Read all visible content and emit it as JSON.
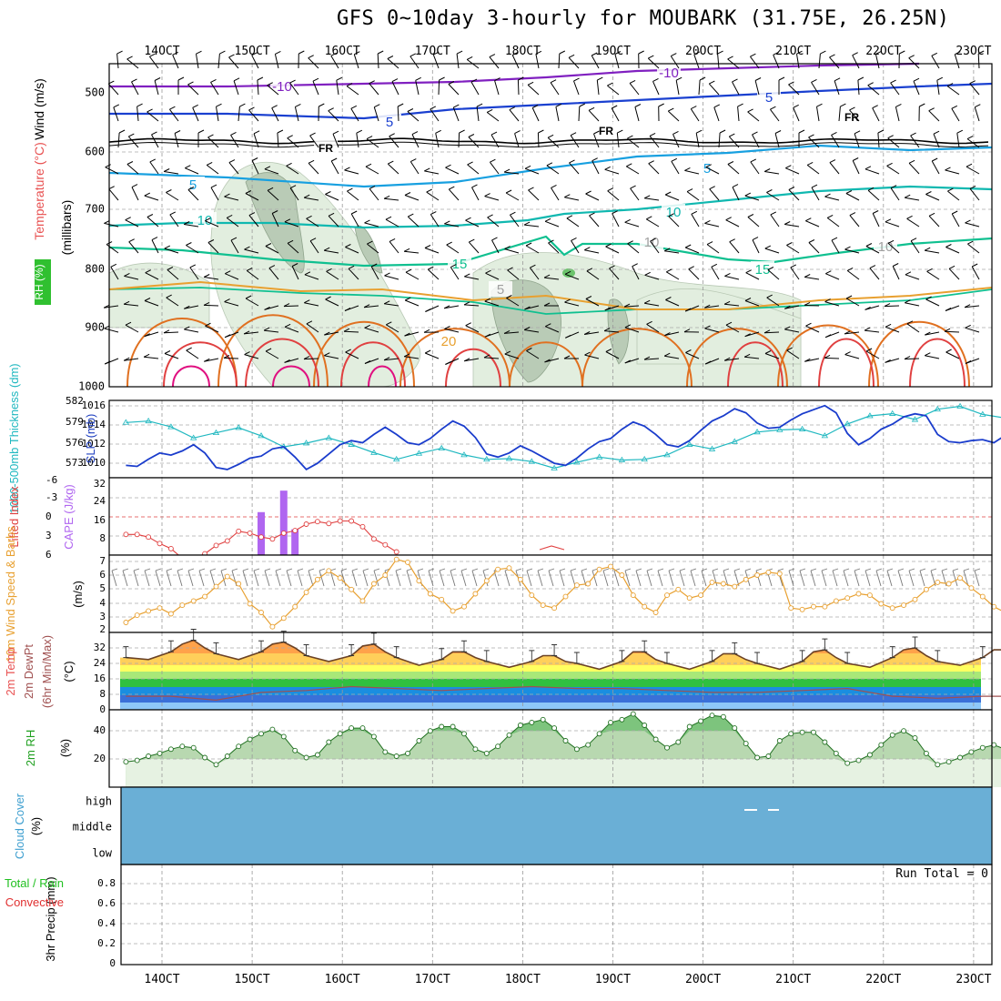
{
  "title": "GFS 0~10day 3-hourly for MOUBARK (31.75E, 26.25N)",
  "colors": {
    "temp_contour": "#e8a030",
    "wind_label": "#000000",
    "rh_label": "#20c020",
    "slp": "#1a3ccc",
    "thickness": "#20b8c0",
    "cape": "#b066f0",
    "lifted_index": "#e04040",
    "wind10m": "#e8a030",
    "cloud": "#6aafd6",
    "precip_total": "#20c020",
    "precip_conv": "#e03030"
  },
  "date_ticks": [
    "14OCT",
    "15OCT",
    "16OCT",
    "17OCT",
    "18OCT",
    "19OCT",
    "20OCT",
    "21OCT",
    "22OCT",
    "23OCT"
  ],
  "panels": {
    "upper": {
      "ylabels": {
        "wind": "Wind (m/s)",
        "temp": "Temperature (°C)",
        "millibars": "(millibars)",
        "rh": "RH (%)"
      },
      "pressure_ticks": [
        "500",
        "600",
        "700",
        "800",
        "900",
        "1000"
      ],
      "contour_labels": [
        {
          "text": "-10",
          "color": "#8020c0"
        },
        {
          "text": "-10",
          "color": "#8020c0"
        },
        {
          "text": "5",
          "color": "#1a40d0"
        },
        {
          "text": "5",
          "color": "#1a40d0"
        },
        {
          "text": "FR",
          "color": "#000000"
        },
        {
          "text": "FR",
          "color": "#000000"
        },
        {
          "text": "FR",
          "color": "#000000"
        },
        {
          "text": "5",
          "color": "#18a0e0"
        },
        {
          "text": "5",
          "color": "#18a0e0"
        },
        {
          "text": "10",
          "color": "#10b8b0"
        },
        {
          "text": "10",
          "color": "#10b8b0"
        },
        {
          "text": "10",
          "color": "#a0a0a0"
        },
        {
          "text": "10",
          "color": "#a0a0a0"
        },
        {
          "text": "15",
          "color": "#10c090"
        },
        {
          "text": "15",
          "color": "#10c090"
        },
        {
          "text": "20",
          "color": "#e8a030"
        },
        {
          "text": "5",
          "color": "#a0a0a0"
        }
      ]
    },
    "slp": {
      "ylabel_left": "1000-500mb Thickness (dm)",
      "ylabel_right": "SLP (mb)",
      "left_ticks": [
        "582",
        "579",
        "576",
        "573"
      ],
      "right_ticks": [
        "1016",
        "1014",
        "1012",
        "1010"
      ]
    },
    "cape": {
      "ylabel_left": "Lifted Index",
      "ylabel_right": "CAPE (J/kg)",
      "left_ticks": [
        "-6",
        "-3",
        "0",
        "3",
        "6"
      ],
      "right_ticks": [
        "32",
        "24",
        "16",
        "8"
      ]
    },
    "wind10m": {
      "ylabel": "10m Wind Speed & Barbs",
      "ylabel_unit": "(m/s)",
      "ticks": [
        "7",
        "6",
        "5",
        "4",
        "3",
        "2"
      ]
    },
    "temp2m": {
      "ylabel": "2m Temp 2m DewPt (6hr Min/Max)",
      "ylabel_unit": "(°C)",
      "ticks": [
        "32",
        "24",
        "16",
        "8",
        "0"
      ]
    },
    "rh2m": {
      "ylabel": "2m RH",
      "ylabel_unit": "(%)",
      "ticks": [
        "40",
        "20"
      ]
    },
    "cloud": {
      "ylabel": "Cloud Cover",
      "ylabel_unit": "(%)",
      "levels": [
        "high",
        "middle",
        "low"
      ]
    },
    "precip": {
      "ylabel": "3hr Precip (mm)",
      "legend_total": "Total / Rain",
      "legend_conv": "Convective",
      "ticks": [
        "0.8",
        "0.6",
        "0.4",
        "0.2",
        "0"
      ],
      "run_total": "Run Total = 0"
    }
  },
  "chart_data": [
    {
      "type": "line",
      "name": "slp",
      "ylabel": "SLP (mb)",
      "ylim": [
        1009,
        1016.5
      ],
      "x_days": [
        0,
        0.125,
        0.25,
        0.375,
        0.5,
        0.625,
        0.75,
        0.875,
        1,
        1.125,
        1.25,
        1.375,
        1.5,
        1.625,
        1.75,
        1.875,
        2,
        2.125,
        2.25,
        2.375,
        2.5,
        2.625,
        2.75,
        2.875,
        3,
        3.125,
        3.25,
        3.375,
        3.5,
        3.625,
        3.75,
        3.875,
        4,
        4.125,
        4.25,
        4.375,
        4.5,
        4.625,
        4.75,
        4.875,
        5,
        5.125,
        5.25,
        5.375,
        5.5,
        5.625,
        5.75,
        5.875,
        6,
        6.125,
        6.25,
        6.375,
        6.5,
        6.625,
        6.75,
        6.875,
        7,
        7.125,
        7.25,
        7.375,
        7.5,
        7.625,
        7.75,
        7.875,
        8,
        8.125,
        8.25,
        8.375,
        8.5,
        8.625,
        8.75,
        8.875,
        9,
        9.125,
        9.25,
        9.375,
        9.5,
        9.625,
        9.75
      ],
      "values": [
        1010.2,
        1010.1,
        1010.8,
        1011.4,
        1011.2,
        1011.6,
        1012.2,
        1011.4,
        1010.0,
        1009.8,
        1010.3,
        1010.9,
        1011.1,
        1011.8,
        1012.0,
        1011.0,
        1009.8,
        1010.4,
        1011.3,
        1012.2,
        1012.6,
        1012.4,
        1013.2,
        1013.9,
        1013.2,
        1012.4,
        1012.2,
        1012.8,
        1013.7,
        1014.5,
        1014.0,
        1012.9,
        1011.3,
        1011.0,
        1011.4,
        1012.1,
        1011.6,
        1011.0,
        1010.4,
        1010.2,
        1010.9,
        1011.8,
        1012.5,
        1012.8,
        1013.7,
        1014.4,
        1014.0,
        1013.2,
        1012.2,
        1012.0,
        1012.6,
        1013.6,
        1014.5,
        1015.0,
        1015.7,
        1015.3,
        1014.3,
        1013.8,
        1013.9,
        1014.6,
        1015.2,
        1015.6,
        1016.0,
        1015.3,
        1013.3,
        1012.2,
        1012.8,
        1013.7,
        1014.2,
        1014.9,
        1015.2,
        1015.0,
        1013.2,
        1012.5,
        1012.4,
        1012.6,
        1012.7,
        1012.4,
        1013.1
      ]
    },
    {
      "type": "line",
      "name": "thickness",
      "ylabel": "1000-500mb Thickness (dm)",
      "ylim": [
        571.5,
        582
      ],
      "x_days": [
        0,
        0.25,
        0.5,
        0.75,
        1,
        1.25,
        1.5,
        1.75,
        2,
        2.25,
        2.5,
        2.75,
        3,
        3.25,
        3.5,
        3.75,
        4,
        4.25,
        4.5,
        4.75,
        5,
        5.25,
        5.5,
        5.75,
        6,
        6.25,
        6.5,
        6.75,
        7,
        7.25,
        7.5,
        7.75,
        8,
        8.25,
        8.5,
        8.75,
        9,
        9.25,
        9.5,
        9.75
      ],
      "values": [
        579.0,
        579.2,
        578.4,
        576.9,
        577.6,
        578.3,
        577.2,
        575.7,
        576.2,
        576.9,
        576.0,
        574.9,
        574.0,
        574.8,
        575.5,
        574.6,
        574.0,
        574.1,
        573.7,
        572.8,
        573.6,
        574.3,
        573.9,
        574.0,
        574.6,
        576.0,
        575.4,
        576.4,
        577.7,
        578.0,
        578.1,
        577.2,
        578.8,
        579.9,
        580.2,
        579.4,
        580.8,
        581.2,
        580.1,
        579.6
      ]
    },
    {
      "type": "bar",
      "name": "cape",
      "ylabel": "CAPE (J/kg)",
      "ylim": [
        0,
        36
      ],
      "x_days": [
        1.5,
        1.75,
        1.875
      ],
      "values": [
        20,
        30,
        12
      ]
    },
    {
      "type": "line",
      "name": "lifted_index",
      "ylabel": "Lifted Index",
      "ylim": [
        6,
        -6
      ],
      "x_days": [
        0,
        0.125,
        0.25,
        0.375,
        0.5,
        0.625,
        0.75,
        0.875,
        1,
        1.125,
        1.25,
        1.375,
        1.5,
        1.625,
        1.75,
        1.875,
        2,
        2.125,
        2.25,
        2.375,
        2.5,
        2.625,
        2.75,
        2.875,
        3
      ],
      "values": [
        2.8,
        2.8,
        3.2,
        4.2,
        5.0,
        6.5,
        6.5,
        5.8,
        4.5,
        3.8,
        2.3,
        2.6,
        3.2,
        3.5,
        2.6,
        2.2,
        1.2,
        0.8,
        1.1,
        0.7,
        0.7,
        1.6,
        3.5,
        4.4,
        5.5
      ]
    },
    {
      "type": "line",
      "name": "wind10m",
      "ylabel": "10m Wind Speed (m/s)",
      "ylim": [
        1.8,
        7.2
      ],
      "x_days": [
        0,
        0.125,
        0.25,
        0.375,
        0.5,
        0.625,
        0.75,
        0.875,
        1,
        1.125,
        1.25,
        1.375,
        1.5,
        1.625,
        1.75,
        1.875,
        2,
        2.125,
        2.25,
        2.375,
        2.5,
        2.625,
        2.75,
        2.875,
        3,
        3.125,
        3.25,
        3.375,
        3.5,
        3.625,
        3.75,
        3.875,
        4,
        4.125,
        4.25,
        4.375,
        4.5,
        4.625,
        4.75,
        4.875,
        5,
        5.125,
        5.25,
        5.375,
        5.5,
        5.625,
        5.75,
        5.875,
        6,
        6.125,
        6.25,
        6.375,
        6.5,
        6.625,
        6.75,
        6.875,
        7,
        7.125,
        7.25,
        7.375,
        7.5,
        7.625,
        7.75,
        7.875,
        8,
        8.125,
        8.25,
        8.375,
        8.5,
        8.625,
        8.75,
        8.875,
        9,
        9.125,
        9.25,
        9.375,
        9.5,
        9.625,
        9.75
      ],
      "values": [
        2.5,
        3.0,
        3.3,
        3.5,
        3.1,
        3.7,
        4.0,
        4.3,
        5.0,
        5.7,
        5.2,
        3.8,
        3.2,
        2.2,
        2.8,
        3.6,
        4.6,
        5.5,
        6.1,
        5.6,
        4.8,
        4.0,
        5.2,
        5.8,
        6.9,
        6.7,
        5.4,
        4.5,
        4.1,
        3.3,
        3.6,
        4.5,
        5.4,
        6.2,
        6.3,
        5.5,
        4.4,
        3.7,
        3.5,
        4.3,
        5.1,
        5.2,
        6.2,
        6.4,
        5.8,
        4.4,
        3.6,
        3.2,
        4.4,
        4.8,
        4.2,
        4.4,
        5.3,
        5.2,
        5.0,
        5.5,
        5.8,
        6.0,
        5.9,
        3.5,
        3.4,
        3.6,
        3.6,
        4.0,
        4.2,
        4.5,
        4.4,
        3.8,
        3.5,
        3.7,
        4.1,
        4.8,
        5.3,
        5.2,
        5.6,
        4.9,
        4.3,
        3.6,
        3.2
      ]
    },
    {
      "type": "area",
      "name": "temp2m",
      "ylabel": "2m Temp (°C)",
      "ylim": [
        0,
        40
      ],
      "x_days": [
        0,
        0.25,
        0.5,
        0.625,
        0.75,
        0.875,
        1,
        1.25,
        1.5,
        1.625,
        1.75,
        1.875,
        2,
        2.25,
        2.5,
        2.625,
        2.75,
        2.875,
        3,
        3.25,
        3.5,
        3.625,
        3.75,
        3.875,
        4,
        4.25,
        4.5,
        4.625,
        4.75,
        4.875,
        5,
        5.25,
        5.5,
        5.625,
        5.75,
        5.875,
        6,
        6.25,
        6.5,
        6.625,
        6.75,
        6.875,
        7,
        7.25,
        7.5,
        7.625,
        7.75,
        7.875,
        8,
        8.25,
        8.5,
        8.625,
        8.75,
        8.875,
        9,
        9.25,
        9.5,
        9.625,
        9.75
      ],
      "values": [
        27,
        26,
        30,
        34,
        36,
        32,
        29,
        26,
        30,
        34,
        35,
        32,
        28,
        25,
        28,
        33,
        34,
        30,
        27,
        23,
        26,
        30,
        30,
        27,
        25,
        22,
        25,
        28,
        28,
        25,
        24,
        21,
        25,
        30,
        30,
        26,
        24,
        21,
        25,
        29,
        29,
        26,
        24,
        21,
        25,
        30,
        31,
        27,
        24,
        22,
        27,
        31,
        32,
        28,
        25,
        23,
        27,
        31,
        31
      ]
    },
    {
      "type": "line",
      "name": "dewpt2m",
      "ylabel": "2m DewPt (°C)",
      "ylim": [
        0,
        40
      ],
      "x_days": [
        0,
        0.5,
        1,
        1.5,
        2,
        2.5,
        3,
        3.5,
        4,
        4.5,
        5,
        5.5,
        6,
        6.5,
        7,
        7.5,
        8,
        8.5,
        9,
        9.5,
        9.75
      ],
      "values": [
        7,
        7,
        5,
        9,
        10,
        12,
        11,
        10,
        11,
        12,
        11,
        11,
        10,
        9,
        9,
        10,
        11,
        7,
        6,
        7,
        7
      ]
    },
    {
      "type": "area",
      "name": "rh2m",
      "ylabel": "2m RH (%)",
      "ylim": [
        0,
        55
      ],
      "x_days": [
        0,
        0.125,
        0.25,
        0.375,
        0.5,
        0.625,
        0.75,
        0.875,
        1,
        1.125,
        1.25,
        1.375,
        1.5,
        1.625,
        1.75,
        1.875,
        2,
        2.125,
        2.25,
        2.375,
        2.5,
        2.625,
        2.75,
        2.875,
        3,
        3.125,
        3.25,
        3.375,
        3.5,
        3.625,
        3.75,
        3.875,
        4,
        4.125,
        4.25,
        4.375,
        4.5,
        4.625,
        4.75,
        4.875,
        5,
        5.125,
        5.25,
        5.375,
        5.5,
        5.625,
        5.75,
        5.875,
        6,
        6.125,
        6.25,
        6.375,
        6.5,
        6.625,
        6.75,
        6.875,
        7,
        7.125,
        7.25,
        7.375,
        7.5,
        7.625,
        7.75,
        7.875,
        8,
        8.125,
        8.25,
        8.375,
        8.5,
        8.625,
        8.75,
        8.875,
        9,
        9.125,
        9.25,
        9.375,
        9.5,
        9.625,
        9.75
      ],
      "values": [
        18,
        19,
        22,
        24,
        27,
        29,
        28,
        21,
        16,
        22,
        29,
        34,
        38,
        41,
        36,
        26,
        21,
        23,
        32,
        38,
        42,
        42,
        36,
        25,
        22,
        24,
        33,
        40,
        43,
        43,
        38,
        27,
        24,
        29,
        37,
        44,
        46,
        48,
        42,
        33,
        27,
        30,
        38,
        46,
        48,
        52,
        44,
        34,
        28,
        32,
        43,
        47,
        51,
        50,
        42,
        31,
        21,
        22,
        33,
        38,
        39,
        39,
        32,
        24,
        17,
        19,
        23,
        30,
        37,
        40,
        35,
        24,
        16,
        18,
        21,
        25,
        28,
        30,
        27
      ]
    },
    {
      "type": "heatmap",
      "name": "cloud_cover",
      "ylabel": "Cloud Cover (%)",
      "rows": [
        "high",
        "middle",
        "low"
      ],
      "values": [
        0,
        0,
        0
      ]
    },
    {
      "type": "bar",
      "name": "precip3hr",
      "ylabel": "3hr Precip (mm)",
      "ylim": [
        0,
        0.9
      ],
      "values": [
        0
      ]
    }
  ]
}
